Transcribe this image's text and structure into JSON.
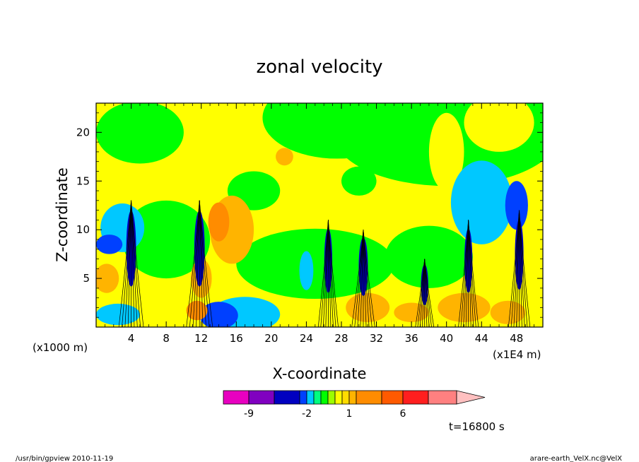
{
  "chart_data": {
    "type": "heatmap",
    "title": "zonal velocity",
    "xlabel": "X-coordinate",
    "ylabel": "Z-coordinate",
    "x_unit_left": "(x1000 m)",
    "x_unit_right": "(x1E4 m)",
    "xlim": [
      0,
      51
    ],
    "ylim": [
      0,
      23
    ],
    "x_ticks": [
      "4",
      "8",
      "12",
      "16",
      "20",
      "24",
      "28",
      "32",
      "36",
      "40",
      "44",
      "48"
    ],
    "y_ticks": [
      "5",
      "10",
      "15",
      "20"
    ],
    "x_tick_values": [
      4,
      8,
      12,
      16,
      20,
      24,
      28,
      32,
      36,
      40,
      44,
      48
    ],
    "y_tick_values": [
      5,
      10,
      15,
      20
    ],
    "colorbar": {
      "colors": [
        "#e800c0",
        "#8000c0",
        "#0000c0",
        "#0040ff",
        "#00c8ff",
        "#00ff7f",
        "#00ff00",
        "#9cff00",
        "#ffff00",
        "#ffdc00",
        "#ffb400",
        "#ff8c00",
        "#ff5a00",
        "#ff1e1e",
        "#ff8080",
        "#ffc0c0"
      ],
      "labels": [
        "-9",
        "-2",
        "1",
        "6"
      ],
      "label_values": [
        -9,
        -2,
        1,
        6
      ]
    },
    "time_label": "t=16800 s",
    "footer_left": "/usr/bin/gpview  2010-11-19",
    "footer_right": "arare-earth_VelX.nc@VelX"
  }
}
